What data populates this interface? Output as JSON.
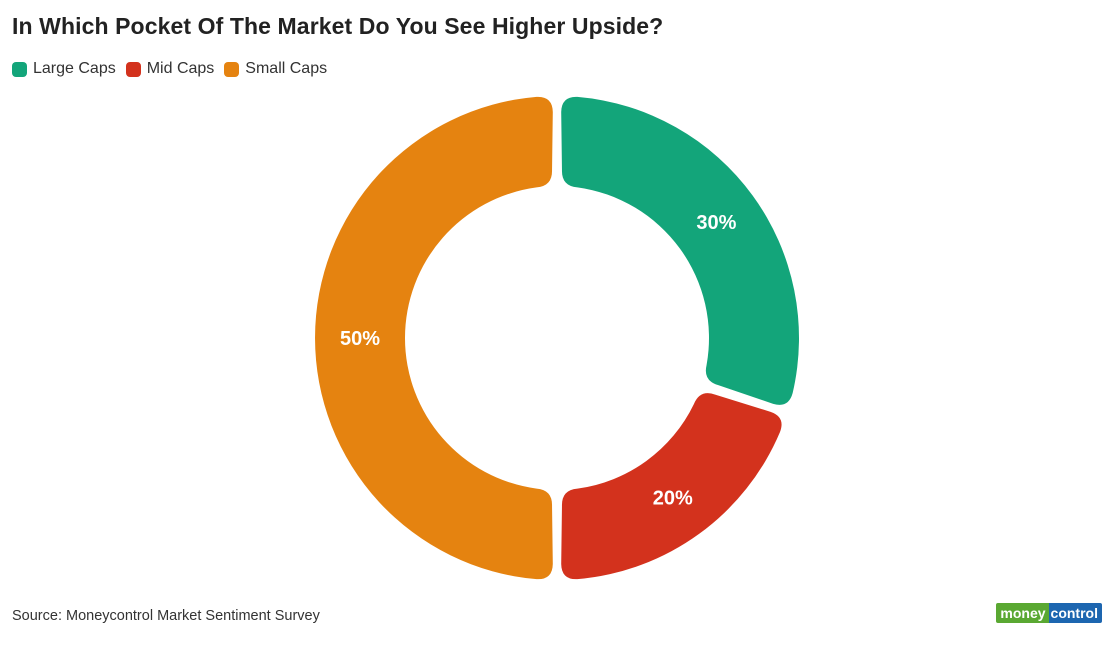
{
  "title": "In Which Pocket Of The Market Do You See Higher Upside?",
  "source": "Source: Moneycontrol Market Sentiment Survey",
  "logo": {
    "part1": "money",
    "part2": "control"
  },
  "colors": {
    "large": "#13a57a",
    "mid": "#d3321d",
    "small": "#e58310"
  },
  "chart_data": {
    "type": "pie",
    "variant": "donut",
    "legend_position": "top-left",
    "categories": [
      "Large Caps",
      "Mid Caps",
      "Small Caps"
    ],
    "values": [
      30,
      20,
      50
    ],
    "labels": [
      "30%",
      "20%",
      "50%"
    ],
    "colors": [
      "#13a57a",
      "#d3321d",
      "#e58310"
    ]
  }
}
